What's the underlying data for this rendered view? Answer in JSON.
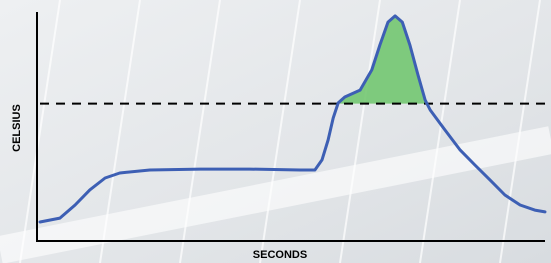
{
  "chart_data": {
    "type": "line",
    "x_label": "SECONDS",
    "y_label": "CELSIUS",
    "x": [
      0.6,
      4.5,
      7.5,
      10.4,
      13.4,
      16.3,
      22.2,
      32.1,
      41.9,
      51.8,
      54.7,
      56.1,
      57.3,
      58.3,
      59.3,
      60.6,
      63.6,
      65.9,
      67.5,
      69.1,
      70.5,
      71.9,
      73.4,
      75.0,
      76.4,
      77.4,
      80.3,
      83.3,
      86.2,
      89.2,
      92.1,
      95.1,
      98.0,
      100
    ],
    "values": [
      8.3,
      10.0,
      15.7,
      22.3,
      27.5,
      29.7,
      31.0,
      31.4,
      31.4,
      31.0,
      31.0,
      35.4,
      44.1,
      53.7,
      60.3,
      62.9,
      65.9,
      74.7,
      85.6,
      95.6,
      98.3,
      95.6,
      85.6,
      72.5,
      61.6,
      57.2,
      48.5,
      39.7,
      33.2,
      26.6,
      20.1,
      15.7,
      13.5,
      12.7
    ],
    "color": "#3d5fb4",
    "threshold": 60,
    "threshold_color": "#000000",
    "fill_color": "#6cc46a",
    "xlim": [
      0,
      100
    ],
    "ylim": [
      0,
      100
    ]
  }
}
